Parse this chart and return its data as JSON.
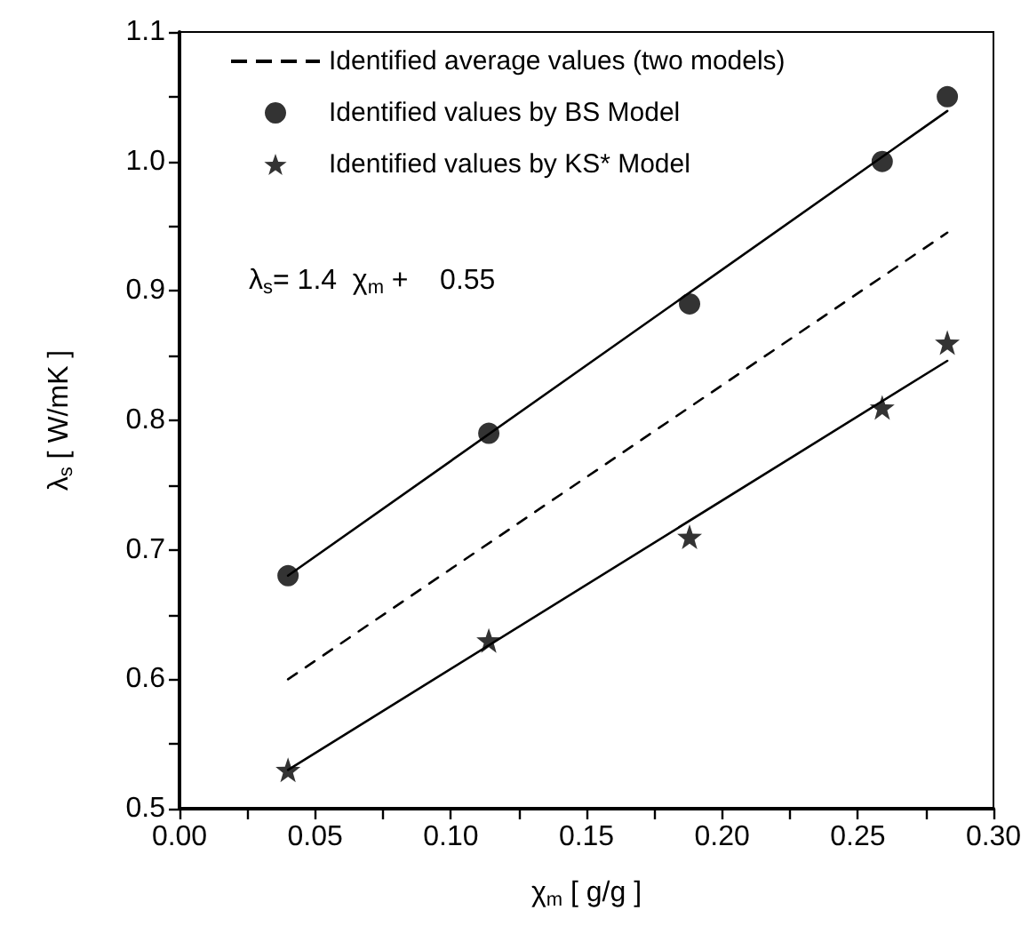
{
  "chart_data": {
    "type": "scatter",
    "xlabel": "χ$_{m}$ [ g/g ]",
    "ylabel": "λ$_{s}$ [ W/mK ]",
    "annotations": [
      "λ$_{s}$= 1.4  χ$_{m}$ +    0.55"
    ],
    "xlim": [
      0,
      0.3
    ],
    "ylim": [
      0.5,
      1.1
    ],
    "xticks": [
      {
        "value": 0,
        "label": "0.00"
      },
      {
        "value": 0.025,
        "label": null
      },
      {
        "value": 0.05,
        "label": "0.05"
      },
      {
        "value": 0.075,
        "label": null
      },
      {
        "value": 0.1,
        "label": "0.10"
      },
      {
        "value": 0.125,
        "label": null
      },
      {
        "value": 0.15,
        "label": "0.15"
      },
      {
        "value": 0.175,
        "label": null
      },
      {
        "value": 0.2,
        "label": "0.20"
      },
      {
        "value": 0.225,
        "label": null
      },
      {
        "value": 0.25,
        "label": "0.25"
      },
      {
        "value": 0.275,
        "label": null
      },
      {
        "value": 0.3,
        "label": "0.30"
      }
    ],
    "yticks": [
      {
        "value": 0.5,
        "label": "0.5"
      },
      {
        "value": 0.55,
        "label": null
      },
      {
        "value": 0.6,
        "label": "0.6"
      },
      {
        "value": 0.65,
        "label": null
      },
      {
        "value": 0.7,
        "label": "0.7"
      },
      {
        "value": 0.75,
        "label": null
      },
      {
        "value": 0.8,
        "label": "0.8"
      },
      {
        "value": 0.85,
        "label": null
      },
      {
        "value": 0.9,
        "label": "0.9"
      },
      {
        "value": 0.95,
        "label": null
      },
      {
        "value": 1.0,
        "label": "1.0"
      },
      {
        "value": 1.05,
        "label": null
      },
      {
        "value": 1.1,
        "label": "1.1"
      }
    ],
    "grid": false,
    "legend": "top left",
    "series": [
      {
        "name": "Identified average values (two models)",
        "type": "line",
        "line_style": "dashed",
        "marker": "none",
        "color": "#000000",
        "x": [
          0.04,
          0.283
        ],
        "values": [
          0.6,
          0.945
        ]
      },
      {
        "name": "Identified values by BS Model",
        "type": "scatter",
        "marker": "circle",
        "color": "#000000",
        "x": [
          0.04,
          0.114,
          0.188,
          0.259,
          0.283
        ],
        "values": [
          0.68,
          0.79,
          0.89,
          1.0,
          1.05
        ]
      },
      {
        "name": "Identified values by KS* Model",
        "type": "scatter",
        "marker": "star",
        "color": "#000000",
        "x": [
          0.04,
          0.114,
          0.188,
          0.259,
          0.283
        ],
        "values": [
          0.53,
          0.63,
          0.71,
          0.81,
          0.86
        ]
      },
      {
        "type": "line",
        "line_style": "solid",
        "marker": "none",
        "color": "#000000",
        "x": [
          0.04,
          0.283
        ],
        "values": [
          0.68,
          1.039
        ]
      },
      {
        "type": "line",
        "line_style": "solid",
        "marker": "none",
        "color": "#000000",
        "x": [
          0.04,
          0.283
        ],
        "values": [
          0.53,
          0.846
        ]
      }
    ]
  }
}
